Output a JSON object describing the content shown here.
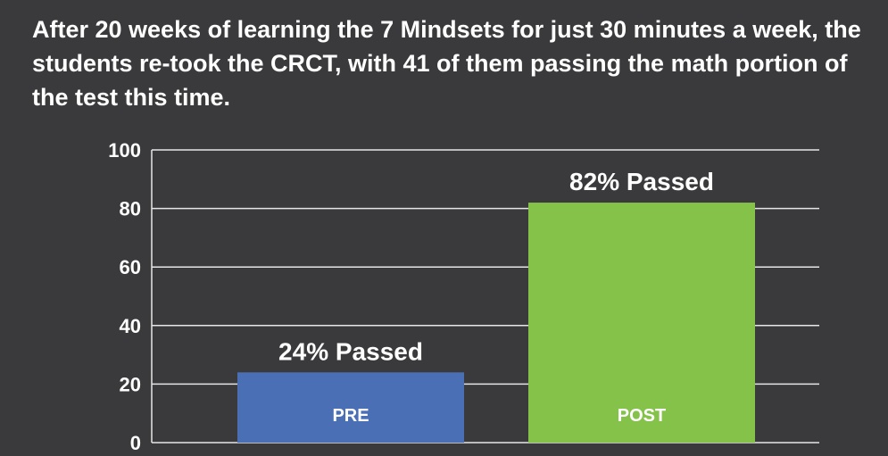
{
  "caption": "After 20 weeks of learning the 7 Mindsets for just 30 minutes a week, the students re-took the CRCT, with 41 of them passing the math portion of the test this time.",
  "colors": {
    "background": "#3a3a3c",
    "grid": "#e6e6e6",
    "pre": "#4a6fb5",
    "post": "#85c249",
    "text": "#ffffff"
  },
  "chart_data": {
    "type": "bar",
    "categories": [
      "PRE",
      "POST"
    ],
    "values": [
      24,
      82
    ],
    "data_labels": [
      "24% Passed",
      "82% Passed"
    ],
    "ylim": [
      0,
      100
    ],
    "yticks": [
      0,
      20,
      40,
      60,
      80,
      100
    ],
    "grid": true,
    "title": "",
    "xlabel": "",
    "ylabel": ""
  }
}
